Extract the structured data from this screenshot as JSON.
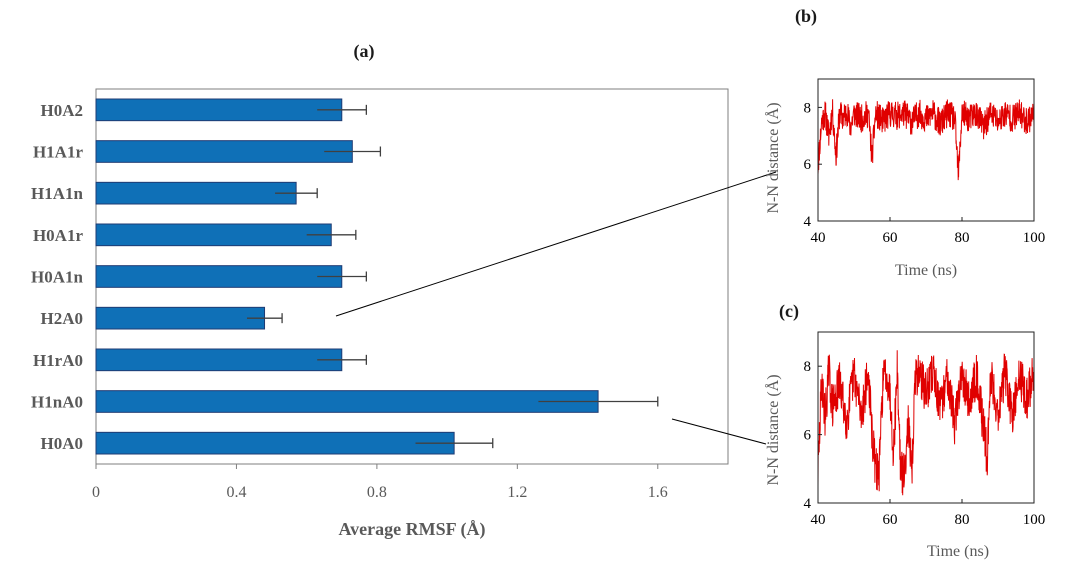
{
  "panels": {
    "a": "(a)",
    "b": "(b)",
    "c": "(c)"
  },
  "colors": {
    "bar": "#0f70b7",
    "bar_edge": "#1f3b73",
    "trace": "#e00000",
    "error": "#404040"
  },
  "chart_data": [
    {
      "type": "bar",
      "orientation": "horizontal",
      "title": "",
      "xlabel": "Average RMSF (Å)",
      "ylabel": "",
      "xlim": [
        0,
        1.8
      ],
      "xticks": [
        "0",
        "0.4",
        "0.8",
        "1.2",
        "1.6"
      ],
      "xtick_values": [
        0,
        0.4,
        0.8,
        1.2,
        1.6
      ],
      "categories": [
        "H0A2",
        "H1A1r",
        "H1A1n",
        "H0A1r",
        "H0A1n",
        "H2A0",
        "H1rA0",
        "H1nA0",
        "H0A0"
      ],
      "values": [
        0.7,
        0.73,
        0.57,
        0.67,
        0.7,
        0.48,
        0.7,
        1.43,
        1.02
      ],
      "errors": [
        0.07,
        0.08,
        0.06,
        0.07,
        0.07,
        0.05,
        0.07,
        0.17,
        0.11
      ],
      "grid": false,
      "legend": "none"
    },
    {
      "type": "line",
      "xlabel": "Time (ns)",
      "ylabel": "N-N distance (Å)",
      "xlim": [
        40,
        100
      ],
      "ylim": [
        4,
        9
      ],
      "xticks": [
        "40",
        "60",
        "80",
        "100"
      ],
      "xtick_values": [
        40,
        60,
        80,
        100
      ],
      "yticks": [
        "4",
        "6",
        "8"
      ],
      "ytick_values": [
        4,
        6,
        8
      ],
      "series": [
        {
          "x": [
            40,
            41,
            42,
            43,
            44,
            45,
            46,
            47,
            48,
            49,
            50,
            52,
            54,
            55,
            56,
            58,
            60,
            62,
            64,
            66,
            68,
            70,
            72,
            74,
            76,
            78,
            79,
            80,
            82,
            84,
            86,
            88,
            90,
            92,
            94,
            96,
            98,
            100
          ],
          "y": [
            5.9,
            7.5,
            7.8,
            7.0,
            7.9,
            6.3,
            7.8,
            7.6,
            7.9,
            7.3,
            7.8,
            7.6,
            7.8,
            6.2,
            7.8,
            7.5,
            7.8,
            7.7,
            7.8,
            7.5,
            7.8,
            7.6,
            7.8,
            7.4,
            7.8,
            7.6,
            5.6,
            7.8,
            7.6,
            7.8,
            7.3,
            7.8,
            7.5,
            7.8,
            7.6,
            7.8,
            7.5,
            7.8
          ]
        }
      ],
      "grid": false,
      "legend": "none"
    },
    {
      "type": "line",
      "xlabel": "Time (ns)",
      "ylabel": "N-N distance (Å)",
      "xlim": [
        40,
        100
      ],
      "ylim": [
        4,
        9
      ],
      "xticks": [
        "40",
        "60",
        "80",
        "100"
      ],
      "xtick_values": [
        40,
        60,
        80,
        100
      ],
      "yticks": [
        "4",
        "6",
        "8"
      ],
      "ytick_values": [
        4,
        6,
        8
      ],
      "series": [
        {
          "x": [
            40,
            41,
            42,
            43,
            44,
            46,
            48,
            50,
            52,
            54,
            55,
            56,
            57,
            58,
            59,
            60,
            61,
            62,
            63,
            64,
            65,
            66,
            67,
            68,
            70,
            72,
            74,
            76,
            78,
            80,
            82,
            84,
            86,
            87,
            88,
            90,
            92,
            94,
            96,
            98,
            100
          ],
          "y": [
            4.8,
            7.6,
            6.5,
            7.9,
            6.8,
            7.5,
            6.4,
            7.8,
            6.6,
            7.8,
            6.0,
            5.0,
            4.9,
            7.5,
            7.9,
            7.2,
            5.5,
            7.9,
            4.9,
            4.8,
            6.5,
            4.7,
            7.6,
            7.9,
            7.2,
            7.9,
            6.7,
            7.8,
            6.3,
            7.9,
            6.9,
            7.8,
            6.2,
            5.3,
            7.8,
            6.6,
            7.9,
            6.4,
            7.8,
            7.0,
            7.9
          ]
        }
      ],
      "grid": false,
      "legend": "none"
    }
  ]
}
